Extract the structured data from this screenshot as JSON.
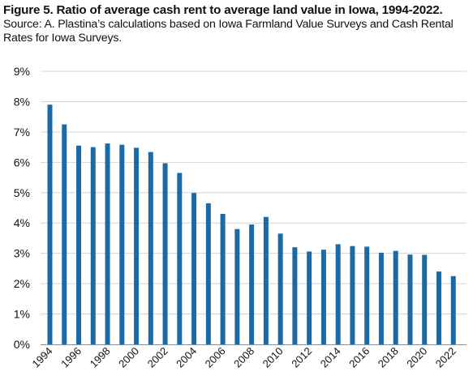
{
  "figure": {
    "title": "Figure 5. Ratio of average cash rent to average land value in Iowa, 1994-2022.",
    "subtitle": "Source: A. Plastina’s calculations based on Iowa Farmland Value Surveys and Cash Rental Rates for Iowa Surveys."
  },
  "chart_data": {
    "type": "bar",
    "title": "Figure 5. Ratio of average cash rent to average land value in Iowa, 1994-2022.",
    "xlabel": "",
    "ylabel": "",
    "ylim": [
      0,
      9
    ],
    "yticks": [
      "0%",
      "1%",
      "2%",
      "3%",
      "4%",
      "5%",
      "6%",
      "7%",
      "8%",
      "9%"
    ],
    "grid": true,
    "bar_color": "#1a6aa8",
    "categories": [
      "1994",
      "1995",
      "1996",
      "1997",
      "1998",
      "1999",
      "2000",
      "2001",
      "2002",
      "2003",
      "2004",
      "2005",
      "2006",
      "2007",
      "2008",
      "2009",
      "2010",
      "2011",
      "2012",
      "2013",
      "2014",
      "2015",
      "2016",
      "2017",
      "2018",
      "2019",
      "2020",
      "2021",
      "2022"
    ],
    "xtick_labels": [
      "1994",
      "1996",
      "1998",
      "2000",
      "2002",
      "2004",
      "2006",
      "2008",
      "2010",
      "2012",
      "2014",
      "2016",
      "2018",
      "2020",
      "2022"
    ],
    "series": [
      {
        "values": [
          7.9,
          7.25,
          6.55,
          6.5,
          6.62,
          6.58,
          6.48,
          6.34,
          5.97,
          5.65,
          4.99,
          4.65,
          4.3,
          3.8,
          3.95,
          4.2,
          3.65,
          3.2,
          3.06,
          3.12,
          3.3,
          3.24,
          3.22,
          3.02,
          3.08,
          2.96,
          2.95,
          2.4,
          2.25
        ]
      }
    ]
  }
}
